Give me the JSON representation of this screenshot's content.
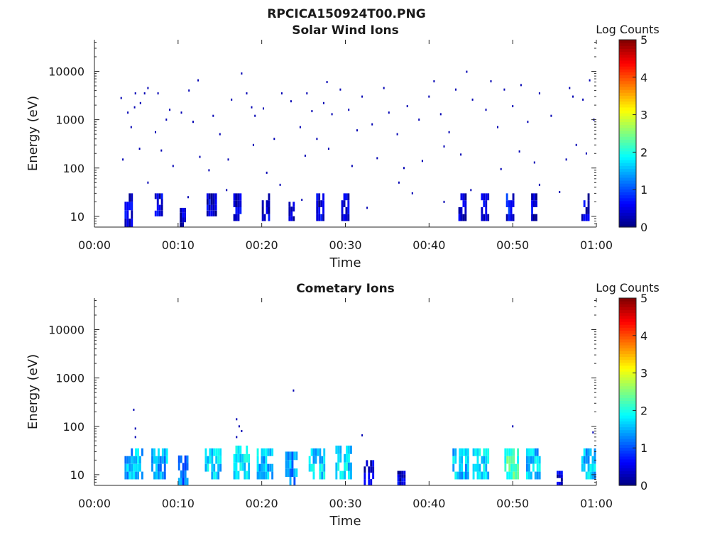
{
  "figure": {
    "title": "RPCICA150924T00.PNG"
  },
  "chart_data": [
    {
      "type": "heatmap",
      "title": "Solar Wind Ions",
      "xlabel": "Time",
      "ylabel": "Energy (eV)",
      "x_tick_labels": [
        "00:00",
        "00:10",
        "00:20",
        "00:30",
        "00:40",
        "00:50",
        "01:00"
      ],
      "x_range_minutes": [
        0,
        60
      ],
      "y_scale": "log",
      "y_range": [
        6,
        45000
      ],
      "y_tick_values": [
        10,
        100,
        1000,
        10000
      ],
      "y_tick_labels": [
        "10",
        "100",
        "1000",
        "10000"
      ],
      "colorbar": {
        "label": "Log Counts",
        "range": [
          0,
          5
        ],
        "tick_labels": [
          "0",
          "1",
          "2",
          "3",
          "4",
          "5"
        ],
        "colormap": "jet"
      },
      "low_energy_bursts": [
        {
          "t_start": 3.6,
          "t_end": 4.6,
          "e_min": 6,
          "e_max": 30,
          "level": 0.4
        },
        {
          "t_start": 7.2,
          "t_end": 8.2,
          "e_min": 10,
          "e_max": 30,
          "level": 0.4
        },
        {
          "t_start": 10.2,
          "t_end": 10.8,
          "e_min": 6,
          "e_max": 15,
          "level": 0.4
        },
        {
          "t_start": 13.4,
          "t_end": 14.6,
          "e_min": 10,
          "e_max": 30,
          "level": 0.4
        },
        {
          "t_start": 16.6,
          "t_end": 17.6,
          "e_min": 8,
          "e_max": 30,
          "level": 0.4
        },
        {
          "t_start": 20.0,
          "t_end": 21.0,
          "e_min": 8,
          "e_max": 30,
          "level": 0.4
        },
        {
          "t_start": 23.2,
          "t_end": 23.8,
          "e_min": 8,
          "e_max": 20,
          "level": 0.4
        },
        {
          "t_start": 26.5,
          "t_end": 27.5,
          "e_min": 8,
          "e_max": 30,
          "level": 0.4
        },
        {
          "t_start": 29.5,
          "t_end": 30.5,
          "e_min": 8,
          "e_max": 30,
          "level": 0.4
        },
        {
          "t_start": 43.5,
          "t_end": 44.5,
          "e_min": 8,
          "e_max": 30,
          "level": 0.4
        },
        {
          "t_start": 46.2,
          "t_end": 47.0,
          "e_min": 8,
          "e_max": 30,
          "level": 0.4
        },
        {
          "t_start": 49.2,
          "t_end": 50.0,
          "e_min": 8,
          "e_max": 30,
          "level": 0.6
        },
        {
          "t_start": 52.2,
          "t_end": 52.8,
          "e_min": 8,
          "e_max": 30,
          "level": 0.4
        },
        {
          "t_start": 58.2,
          "t_end": 59.0,
          "e_min": 8,
          "e_max": 30,
          "level": 0.4
        }
      ],
      "scatter_points": [
        {
          "t": 3.2,
          "e": 2800
        },
        {
          "t": 4.0,
          "e": 1400
        },
        {
          "t": 4.8,
          "e": 1800
        },
        {
          "t": 5.5,
          "e": 2200
        },
        {
          "t": 4.4,
          "e": 700
        },
        {
          "t": 6.0,
          "e": 3500
        },
        {
          "t": 6.4,
          "e": 4500
        },
        {
          "t": 7.3,
          "e": 550
        },
        {
          "t": 7.6,
          "e": 3500
        },
        {
          "t": 8.6,
          "e": 1000
        },
        {
          "t": 9.0,
          "e": 1600
        },
        {
          "t": 5.4,
          "e": 250
        },
        {
          "t": 3.4,
          "e": 150
        },
        {
          "t": 10.4,
          "e": 1400
        },
        {
          "t": 11.3,
          "e": 4000
        },
        {
          "t": 11.8,
          "e": 900
        },
        {
          "t": 12.4,
          "e": 6500
        },
        {
          "t": 14.2,
          "e": 1200
        },
        {
          "t": 15.0,
          "e": 500
        },
        {
          "t": 16.4,
          "e": 2600
        },
        {
          "t": 17.6,
          "e": 9000
        },
        {
          "t": 18.2,
          "e": 3500
        },
        {
          "t": 19.2,
          "e": 1200
        },
        {
          "t": 20.2,
          "e": 1700
        },
        {
          "t": 21.5,
          "e": 400
        },
        {
          "t": 22.4,
          "e": 3500
        },
        {
          "t": 23.5,
          "e": 2400
        },
        {
          "t": 24.6,
          "e": 700
        },
        {
          "t": 25.4,
          "e": 3500
        },
        {
          "t": 26.0,
          "e": 1500
        },
        {
          "t": 26.6,
          "e": 400
        },
        {
          "t": 27.4,
          "e": 2200
        },
        {
          "t": 28.4,
          "e": 1300
        },
        {
          "t": 29.4,
          "e": 4200
        },
        {
          "t": 30.4,
          "e": 1600
        },
        {
          "t": 31.4,
          "e": 600
        },
        {
          "t": 32.0,
          "e": 3000
        },
        {
          "t": 33.2,
          "e": 800
        },
        {
          "t": 34.6,
          "e": 4500
        },
        {
          "t": 35.2,
          "e": 1400
        },
        {
          "t": 36.2,
          "e": 500
        },
        {
          "t": 37.4,
          "e": 1900
        },
        {
          "t": 38.8,
          "e": 1000
        },
        {
          "t": 40.0,
          "e": 3000
        },
        {
          "t": 40.6,
          "e": 6200
        },
        {
          "t": 41.4,
          "e": 1300
        },
        {
          "t": 42.4,
          "e": 550
        },
        {
          "t": 43.2,
          "e": 4200
        },
        {
          "t": 44.5,
          "e": 9800
        },
        {
          "t": 45.2,
          "e": 2600
        },
        {
          "t": 46.8,
          "e": 1600
        },
        {
          "t": 47.4,
          "e": 6200
        },
        {
          "t": 48.2,
          "e": 700
        },
        {
          "t": 49.0,
          "e": 4200
        },
        {
          "t": 50.0,
          "e": 1900
        },
        {
          "t": 51.0,
          "e": 5200
        },
        {
          "t": 51.8,
          "e": 900
        },
        {
          "t": 53.2,
          "e": 3500
        },
        {
          "t": 54.6,
          "e": 1200
        },
        {
          "t": 56.8,
          "e": 4500
        },
        {
          "t": 57.6,
          "e": 300
        },
        {
          "t": 58.4,
          "e": 2600
        },
        {
          "t": 59.2,
          "e": 6500
        },
        {
          "t": 59.7,
          "e": 1000
        },
        {
          "t": 8.0,
          "e": 230
        },
        {
          "t": 9.4,
          "e": 110
        },
        {
          "t": 12.6,
          "e": 170
        },
        {
          "t": 13.7,
          "e": 90
        },
        {
          "t": 16.0,
          "e": 150
        },
        {
          "t": 19.0,
          "e": 300
        },
        {
          "t": 20.6,
          "e": 80
        },
        {
          "t": 25.2,
          "e": 180
        },
        {
          "t": 28.0,
          "e": 250
        },
        {
          "t": 30.8,
          "e": 110
        },
        {
          "t": 33.8,
          "e": 160
        },
        {
          "t": 37.0,
          "e": 100
        },
        {
          "t": 39.2,
          "e": 140
        },
        {
          "t": 41.8,
          "e": 280
        },
        {
          "t": 43.8,
          "e": 190
        },
        {
          "t": 48.6,
          "e": 95
        },
        {
          "t": 50.8,
          "e": 220
        },
        {
          "t": 52.6,
          "e": 130
        },
        {
          "t": 56.4,
          "e": 150
        },
        {
          "t": 58.8,
          "e": 200
        },
        {
          "t": 6.4,
          "e": 50
        },
        {
          "t": 11.2,
          "e": 25
        },
        {
          "t": 15.8,
          "e": 35
        },
        {
          "t": 22.2,
          "e": 45
        },
        {
          "t": 24.8,
          "e": 22
        },
        {
          "t": 32.6,
          "e": 15
        },
        {
          "t": 36.4,
          "e": 50
        },
        {
          "t": 38.0,
          "e": 30
        },
        {
          "t": 41.8,
          "e": 20
        },
        {
          "t": 45.0,
          "e": 35
        },
        {
          "t": 53.2,
          "e": 45
        },
        {
          "t": 55.6,
          "e": 32
        },
        {
          "t": 4.9,
          "e": 3500
        },
        {
          "t": 27.8,
          "e": 6000
        },
        {
          "t": 57.2,
          "e": 3000
        },
        {
          "t": 18.8,
          "e": 1800
        }
      ]
    },
    {
      "type": "heatmap",
      "title": "Cometary Ions",
      "xlabel": "Time",
      "ylabel": "Energy (eV)",
      "x_tick_labels": [
        "00:00",
        "00:10",
        "00:20",
        "00:30",
        "00:40",
        "00:50",
        "01:00"
      ],
      "x_range_minutes": [
        0,
        60
      ],
      "y_scale": "log",
      "y_range": [
        6,
        45000
      ],
      "y_tick_values": [
        10,
        100,
        1000,
        10000
      ],
      "y_tick_labels": [
        "10",
        "100",
        "1000",
        "10000"
      ],
      "colorbar": {
        "label": "Log Counts",
        "range": [
          0,
          5
        ],
        "tick_labels": [
          "0",
          "1",
          "2",
          "3",
          "4",
          "5"
        ],
        "colormap": "jet"
      },
      "low_energy_bursts": [
        {
          "t_start": 3.6,
          "t_end": 5.8,
          "e_min": 8,
          "e_max": 35,
          "level": 1.5
        },
        {
          "t_start": 6.8,
          "t_end": 8.6,
          "e_min": 8,
          "e_max": 35,
          "level": 1.5
        },
        {
          "t_start": 10.0,
          "t_end": 11.2,
          "e_min": 6,
          "e_max": 25,
          "level": 1.2
        },
        {
          "t_start": 13.2,
          "t_end": 15.0,
          "e_min": 8,
          "e_max": 35,
          "level": 1.6
        },
        {
          "t_start": 16.6,
          "t_end": 18.4,
          "e_min": 8,
          "e_max": 40,
          "level": 1.7
        },
        {
          "t_start": 19.4,
          "t_end": 21.4,
          "e_min": 8,
          "e_max": 35,
          "level": 1.6
        },
        {
          "t_start": 22.8,
          "t_end": 24.2,
          "e_min": 6,
          "e_max": 30,
          "level": 1.4
        },
        {
          "t_start": 25.6,
          "t_end": 27.6,
          "e_min": 8,
          "e_max": 35,
          "level": 1.7
        },
        {
          "t_start": 28.8,
          "t_end": 30.8,
          "e_min": 8,
          "e_max": 40,
          "level": 1.7
        },
        {
          "t_start": 32.2,
          "t_end": 33.4,
          "e_min": 6,
          "e_max": 20,
          "level": 0.5
        },
        {
          "t_start": 36.2,
          "t_end": 37.0,
          "e_min": 6,
          "e_max": 12,
          "level": 0.4
        },
        {
          "t_start": 42.8,
          "t_end": 44.6,
          "e_min": 8,
          "e_max": 35,
          "level": 1.6
        },
        {
          "t_start": 45.2,
          "t_end": 47.0,
          "e_min": 8,
          "e_max": 35,
          "level": 1.7
        },
        {
          "t_start": 49.0,
          "t_end": 50.6,
          "e_min": 8,
          "e_max": 35,
          "level": 2.2
        },
        {
          "t_start": 51.6,
          "t_end": 53.2,
          "e_min": 8,
          "e_max": 35,
          "level": 1.6
        },
        {
          "t_start": 55.0,
          "t_end": 55.8,
          "e_min": 6,
          "e_max": 12,
          "level": 0.4
        },
        {
          "t_start": 58.2,
          "t_end": 59.8,
          "e_min": 8,
          "e_max": 35,
          "level": 1.6
        }
      ],
      "scatter_points": [
        {
          "t": 4.7,
          "e": 220
        },
        {
          "t": 4.9,
          "e": 90
        },
        {
          "t": 4.9,
          "e": 60
        },
        {
          "t": 17.0,
          "e": 140
        },
        {
          "t": 17.3,
          "e": 100
        },
        {
          "t": 17.6,
          "e": 80
        },
        {
          "t": 17.0,
          "e": 60
        },
        {
          "t": 23.8,
          "e": 550
        },
        {
          "t": 32.0,
          "e": 65
        },
        {
          "t": 50.0,
          "e": 100
        },
        {
          "t": 59.6,
          "e": 75
        }
      ]
    }
  ]
}
